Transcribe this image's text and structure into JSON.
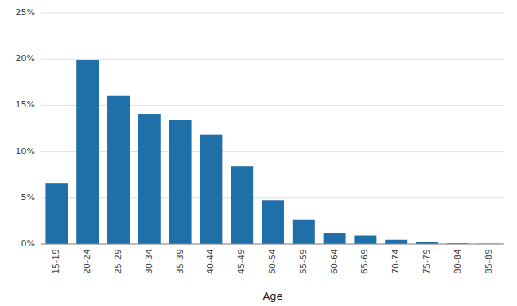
{
  "chart_data": {
    "type": "bar",
    "xlabel": "Age",
    "categories": [
      "15-19",
      "20-24",
      "25-29",
      "30-34",
      "35-39",
      "40-44",
      "45-49",
      "50-54",
      "55-59",
      "60-64",
      "65-69",
      "70-74",
      "75-79",
      "80-84",
      "85-89"
    ],
    "values": [
      6.6,
      19.9,
      16.0,
      14.0,
      13.4,
      11.8,
      8.4,
      4.7,
      2.6,
      1.2,
      0.9,
      0.45,
      0.25,
      0.07,
      0.03
    ],
    "color": "#1F6FA8",
    "ylim": [
      0,
      25
    ],
    "yticks": [
      {
        "value": 0,
        "label": "0%"
      },
      {
        "value": 5,
        "label": "5%"
      },
      {
        "value": 10,
        "label": "10%"
      },
      {
        "value": 15,
        "label": "15%"
      },
      {
        "value": 20,
        "label": "20%"
      },
      {
        "value": 25,
        "label": "25%"
      }
    ],
    "grid": true
  }
}
